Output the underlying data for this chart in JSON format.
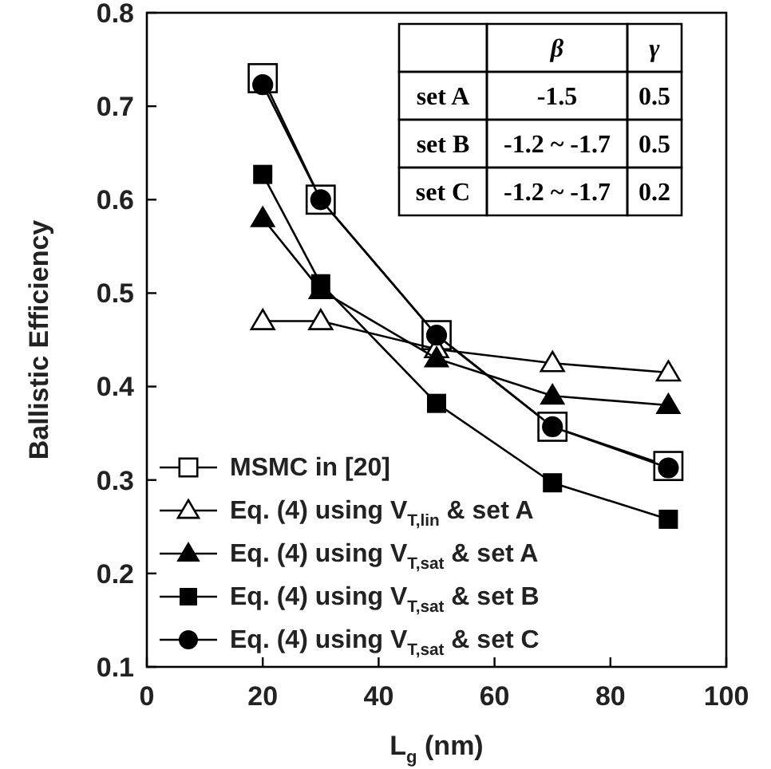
{
  "chart_data": {
    "type": "line",
    "xlabel": "L$_{g}$ (nm)",
    "ylabel": "Ballistic Efficiency",
    "xlim": [
      0,
      100
    ],
    "xticks": [
      0,
      20,
      40,
      60,
      80,
      100
    ],
    "ylim": [
      0.1,
      0.8
    ],
    "yticks": [
      0.1,
      0.2,
      0.3,
      0.4,
      0.5,
      0.6,
      0.7,
      0.8
    ],
    "x": [
      20,
      30,
      50,
      70,
      90
    ],
    "legend": "bottom left",
    "grid": false,
    "series": [
      {
        "name": "MSMC in [20]",
        "color": "#000000",
        "marker": "square-open",
        "values": [
          0.73,
          0.6,
          0.455,
          0.357,
          0.315
        ]
      },
      {
        "name": "Eq. (4) using V$_{T,lin}$ & set A",
        "color": "#000000",
        "marker": "triangle-open",
        "values": [
          0.47,
          0.47,
          0.44,
          0.425,
          0.415
        ]
      },
      {
        "name": "Eq. (4) using V$_{T,sat}$ & set A",
        "color": "#000000",
        "marker": "triangle",
        "values": [
          0.58,
          0.503,
          0.43,
          0.39,
          0.38
        ]
      },
      {
        "name": "Eq. (4) using V$_{T,sat}$ & set B",
        "color": "#000000",
        "marker": "square",
        "values": [
          0.627,
          0.51,
          0.382,
          0.297,
          0.258
        ]
      },
      {
        "name": "Eq. (4) using V$_{T,sat}$ & set C",
        "color": "#000000",
        "marker": "circle",
        "values": [
          0.723,
          0.6,
          0.455,
          0.357,
          0.313
        ]
      }
    ],
    "annotations": [
      "β",
      "γ",
      "set A",
      "-1.5",
      "0.5",
      "set B",
      "-1.2 ~ -1.7",
      "0.5",
      "set C",
      "-1.2 ~ -1.7",
      "0.2"
    ]
  }
}
